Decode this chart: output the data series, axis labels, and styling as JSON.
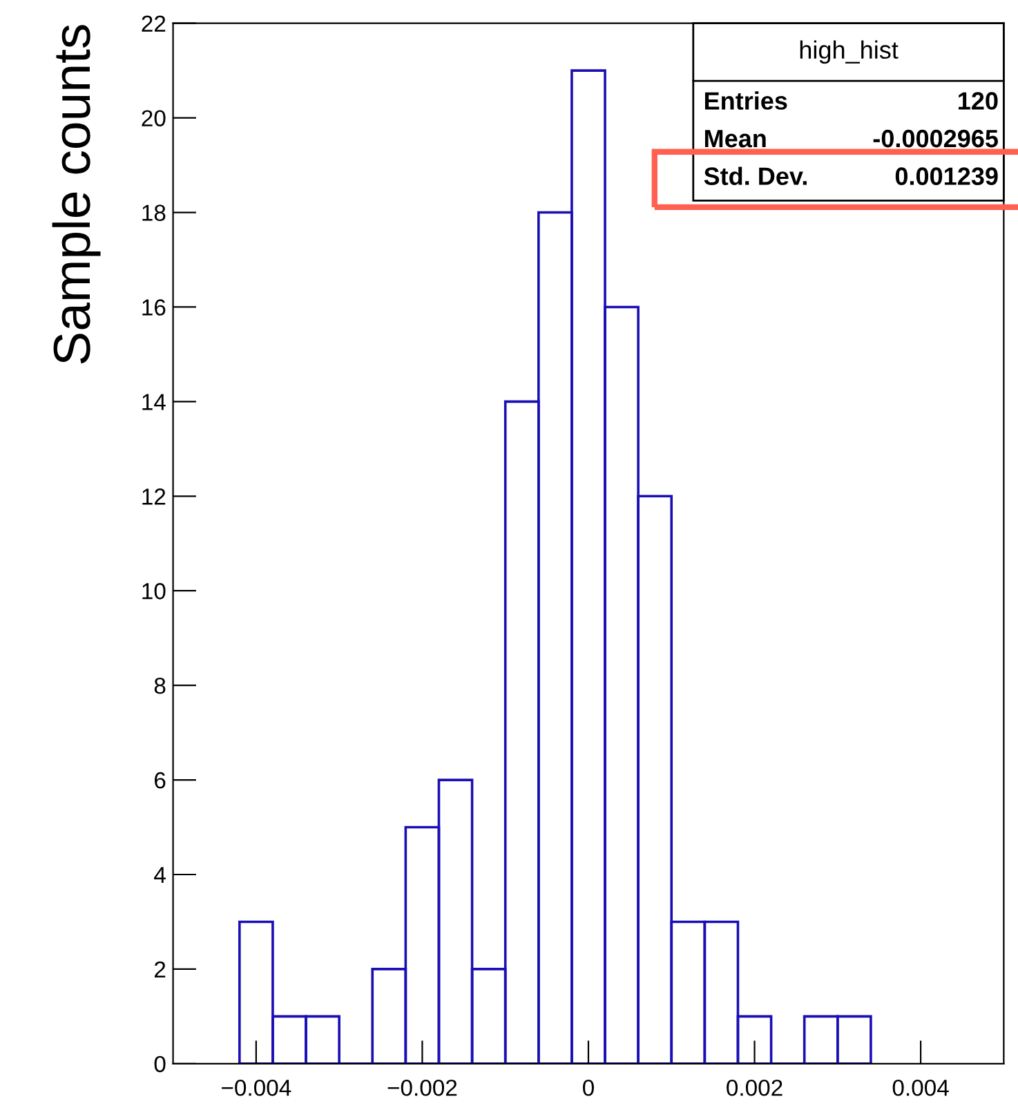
{
  "chart_data": {
    "type": "histogram",
    "ylabel": "Sample counts",
    "bins": [
      -0.0042,
      -0.0038,
      -0.0034,
      -0.003,
      -0.0026,
      -0.0022,
      -0.0018,
      -0.0014,
      -0.001,
      -0.0006,
      -0.0002,
      0.0002,
      0.0006,
      0.001,
      0.0014,
      0.0018,
      0.0022,
      0.0026,
      0.003,
      0.0034
    ],
    "values": [
      3,
      1,
      1,
      0,
      2,
      5,
      6,
      2,
      14,
      18,
      21,
      16,
      12,
      3,
      3,
      1,
      0,
      1,
      1
    ],
    "color": "#1a0fb4",
    "xlim": [
      -0.005,
      0.005
    ],
    "xticks": [
      {
        "value": -0.004,
        "label": "−0.004"
      },
      {
        "value": -0.002,
        "label": "−0.002"
      },
      0,
      0.002,
      0.004
    ],
    "ylim": [
      0,
      22
    ],
    "yticks": [
      0,
      2,
      4,
      6,
      8,
      10,
      12,
      14,
      16,
      18,
      20,
      22
    ],
    "grid": false,
    "annotations": [
      "high_hist",
      "Entries 120",
      "Mean -0.0002965",
      "Std. Dev. 0.001239"
    ]
  }
}
